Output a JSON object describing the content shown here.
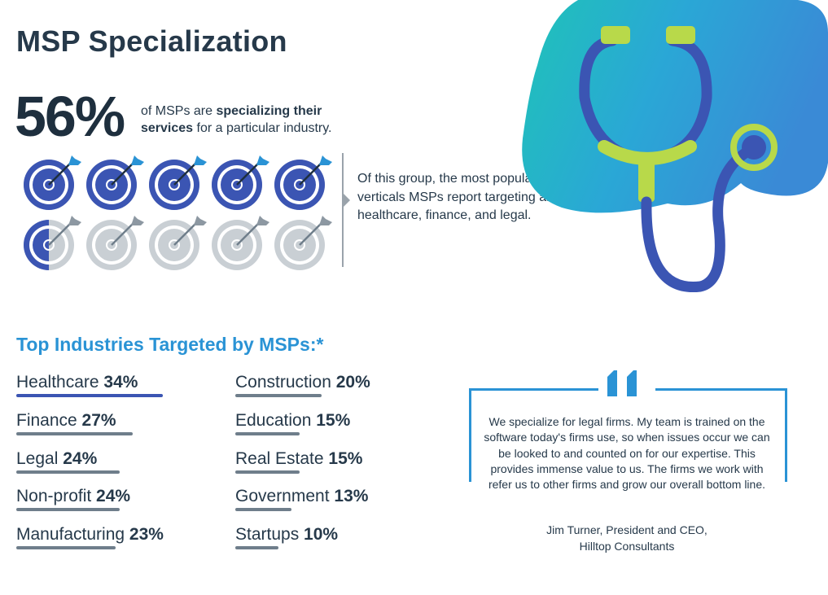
{
  "header": {
    "title": "MSP Specialization"
  },
  "stat": {
    "percent": "56%",
    "text_pre": "of MSPs are ",
    "text_bold": "specializing their services",
    "text_post": " for a particular industry.",
    "targets_total": 10,
    "targets_highlighted": 5.5
  },
  "group_note": {
    "text": "Of this group, the most popular verticals MSPs report targeting are healthcare, finance, and legal."
  },
  "industries": {
    "title": "Top Industries Targeted by MSPs:*",
    "items": [
      {
        "label": "Healthcare",
        "pct": "34%",
        "value": 34
      },
      {
        "label": "Finance",
        "pct": "27%",
        "value": 27
      },
      {
        "label": "Legal",
        "pct": "24%",
        "value": 24
      },
      {
        "label": "Non-profit",
        "pct": "24%",
        "value": 24
      },
      {
        "label": "Manufacturing",
        "pct": "23%",
        "value": 23
      },
      {
        "label": "Construction",
        "pct": "20%",
        "value": 20
      },
      {
        "label": "Education",
        "pct": "15%",
        "value": 15
      },
      {
        "label": "Real Estate",
        "pct": "15%",
        "value": 15
      },
      {
        "label": "Government",
        "pct": "13%",
        "value": 13
      },
      {
        "label": "Startups",
        "pct": "10%",
        "value": 10
      }
    ]
  },
  "quote": {
    "text": "We specialize for legal firms. My team is trained on the software today's firms use, so when issues occur we can be looked to and counted on for our expertise. This provides immense value to us. The firms we work with refer us to other firms and grow our overall bottom line.",
    "author_line1": "Jim Turner, President and CEO,",
    "author_line2": "Hilltop Consultants"
  },
  "colors": {
    "accent_blue": "#2a93d5",
    "target_blue": "#3b55b3",
    "target_gray": "#c9cfd4",
    "bar_gray": "#6f7e8b",
    "lime": "#b8d94a"
  }
}
